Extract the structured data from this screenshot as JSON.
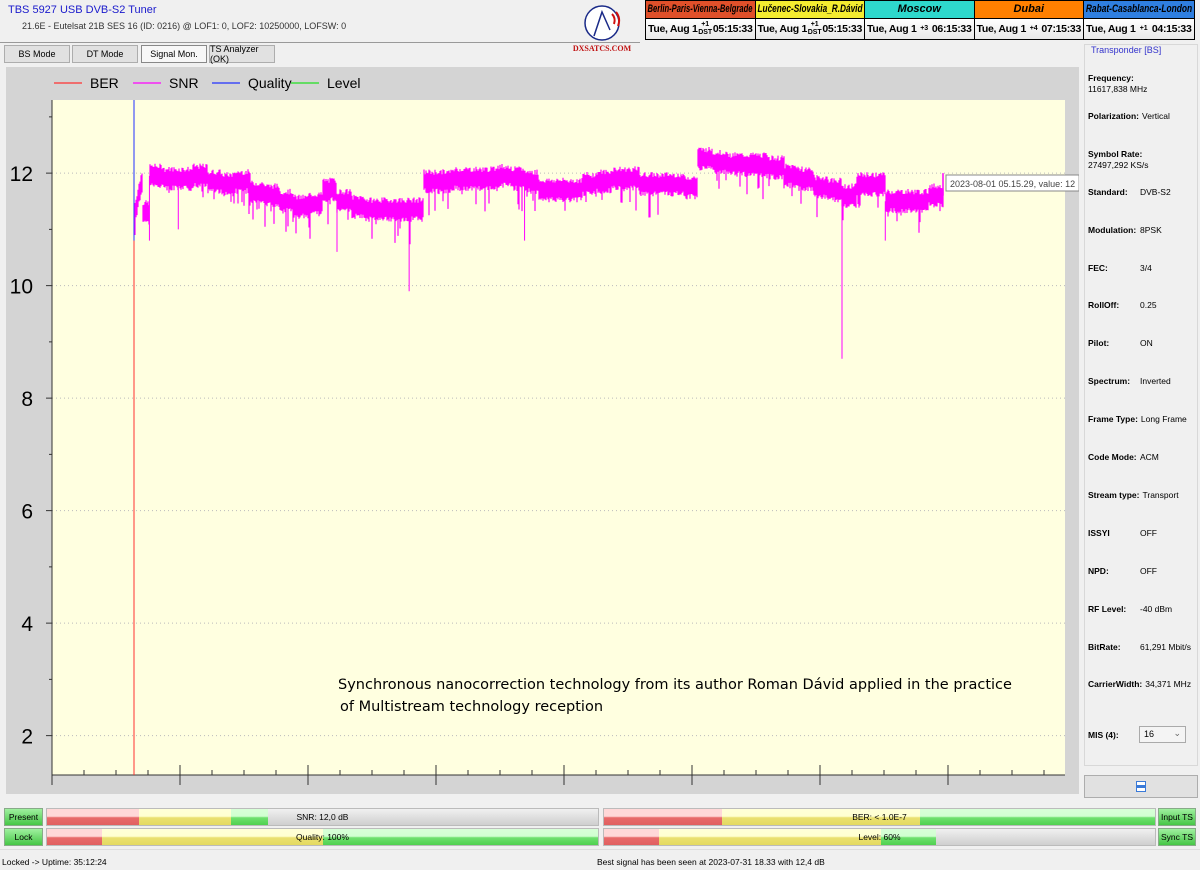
{
  "header": {
    "title": "TBS 5927 USB DVB-S2 Tuner",
    "subtitle": "21.6E - Eutelsat 21B  SES 16 (ID: 0216) @ LOF1: 0, LOF2: 10250000, LOFSW: 0",
    "logo_text": "DXSATCS.COM"
  },
  "tabs": [
    {
      "label": "BS Mode"
    },
    {
      "label": "DT Mode"
    },
    {
      "label": "Signal Mon.",
      "active": true
    },
    {
      "label": "TS Analyzer (OK)"
    }
  ],
  "clocks": [
    {
      "city": "Berlin-Paris-Vienna-Belgrade",
      "date": "Tue, Aug 1",
      "offset": "+1",
      "dst": "DST",
      "time": "05:15:33",
      "color": "#e0502a"
    },
    {
      "city": "Lučenec-Slovakia_R.Dávid",
      "date": "Tue, Aug 1",
      "offset": "+1",
      "dst": "DST",
      "time": "05:15:33",
      "color": "#f4ec30"
    },
    {
      "city": "Moscow",
      "date": "Tue, Aug 1",
      "offset": "+3",
      "dst": "",
      "time": "06:15:33",
      "color": "#2ed8cc"
    },
    {
      "city": "Dubai",
      "date": "Tue, Aug 1",
      "offset": "+4",
      "dst": "",
      "time": "07:15:33",
      "color": "#ff8000"
    },
    {
      "city": "Rabat-Casablanca-London",
      "date": "Tue, Aug 1",
      "offset": "+1",
      "dst": "",
      "time": "04:15:33",
      "color": "#2f7fe0"
    }
  ],
  "chart_data": {
    "type": "line",
    "legend": [
      {
        "name": "BER",
        "color": "#ff3030"
      },
      {
        "name": "SNR",
        "color": "#ff00ff"
      },
      {
        "name": "Quality",
        "color": "#2030ff"
      },
      {
        "name": "Level",
        "color": "#20e020"
      }
    ],
    "legend_placement": "top-left",
    "y_ticks": [
      "2",
      "4",
      "6",
      "8",
      "10",
      "12"
    ],
    "ylim": [
      1.3,
      13.3
    ],
    "grid": "horizontal dotted",
    "background": "#ffffe0",
    "snr_levels": [
      11.3,
      11.95,
      11.9,
      11.9,
      11.95,
      11.85,
      11.8,
      11.85,
      11.65,
      11.6,
      11.5,
      11.4,
      11.45,
      11.7,
      11.5,
      11.4,
      11.35,
      11.35,
      11.35,
      11.35,
      11.85,
      11.85,
      11.9,
      11.9,
      11.9,
      11.95,
      11.9,
      11.85,
      11.7,
      11.7,
      11.7,
      11.8,
      11.85,
      11.9,
      11.9,
      11.8,
      11.8,
      11.8,
      11.75,
      12.25,
      12.2,
      12.15,
      12.15,
      12.15,
      12.1,
      11.95,
      11.9,
      11.75,
      11.7,
      11.6,
      11.8,
      11.8,
      11.5,
      11.5,
      11.5,
      11.6,
      11.7
    ],
    "snr_spikes": [
      {
        "i": 1,
        "v": 10.8
      },
      {
        "i": 3,
        "v": 11.0
      },
      {
        "i": 14,
        "v": 10.6
      },
      {
        "i": 19,
        "v": 9.9
      },
      {
        "i": 27,
        "v": 10.8
      },
      {
        "i": 49,
        "v": 8.7
      },
      {
        "i": 52,
        "v": 10.8
      }
    ],
    "tooltip": "2023-08-01 05.15.29, value: 12",
    "annotation": [
      "Synchronous nanocorrection technology from its author Roman Dávid applied in the practice",
      "of Multistream technology reception"
    ]
  },
  "transponder": {
    "title": "Transponder [BS]",
    "rows": [
      {
        "k": "Frequency:",
        "v": "11617,838 MHz"
      },
      {
        "k": "Polarization:",
        "v": "Vertical"
      },
      {
        "k": "Symbol Rate:",
        "v": "27497,292 KS/s"
      },
      {
        "k": "Standard:",
        "v": "DVB-S2"
      },
      {
        "k": "Modulation:",
        "v": "8PSK"
      },
      {
        "k": "FEC:",
        "v": "3/4"
      },
      {
        "k": "RollOff:",
        "v": "0.25"
      },
      {
        "k": "Pilot:",
        "v": "ON"
      },
      {
        "k": "Spectrum:",
        "v": "Inverted"
      },
      {
        "k": "Frame Type:",
        "v": "Long Frame"
      },
      {
        "k": "Code Mode:",
        "v": "ACM"
      },
      {
        "k": "Stream type:",
        "v": "Transport"
      },
      {
        "k": "ISSYI",
        "v": "OFF"
      },
      {
        "k": "NPD:",
        "v": "OFF"
      },
      {
        "k": "RF Level:",
        "v": "-40 dBm"
      },
      {
        "k": "BitRate:",
        "v": "61,291 Mbit/s"
      },
      {
        "k": "CarrierWidth:",
        "v": "34,371 MHz"
      }
    ],
    "mis_label": "MIS (4):",
    "mis_value": "16"
  },
  "meters": {
    "present": "Present",
    "lock": "Lock",
    "input_ts": "Input TS",
    "sync_ts": "Sync TS",
    "snr": {
      "label": "SNR: 12,0 dB",
      "fill": 40
    },
    "ber": {
      "label": "BER: < 1.0E-7",
      "fill": 100
    },
    "quality": {
      "label": "Quality: 100%",
      "fill": 100
    },
    "level": {
      "label": "Level: 60%",
      "fill": 60
    }
  },
  "status": {
    "uptime": "Locked -> Uptime: 35:12:24",
    "best": "Best signal has been seen at 2023-07-31 18.33 with 12,4 dB"
  }
}
